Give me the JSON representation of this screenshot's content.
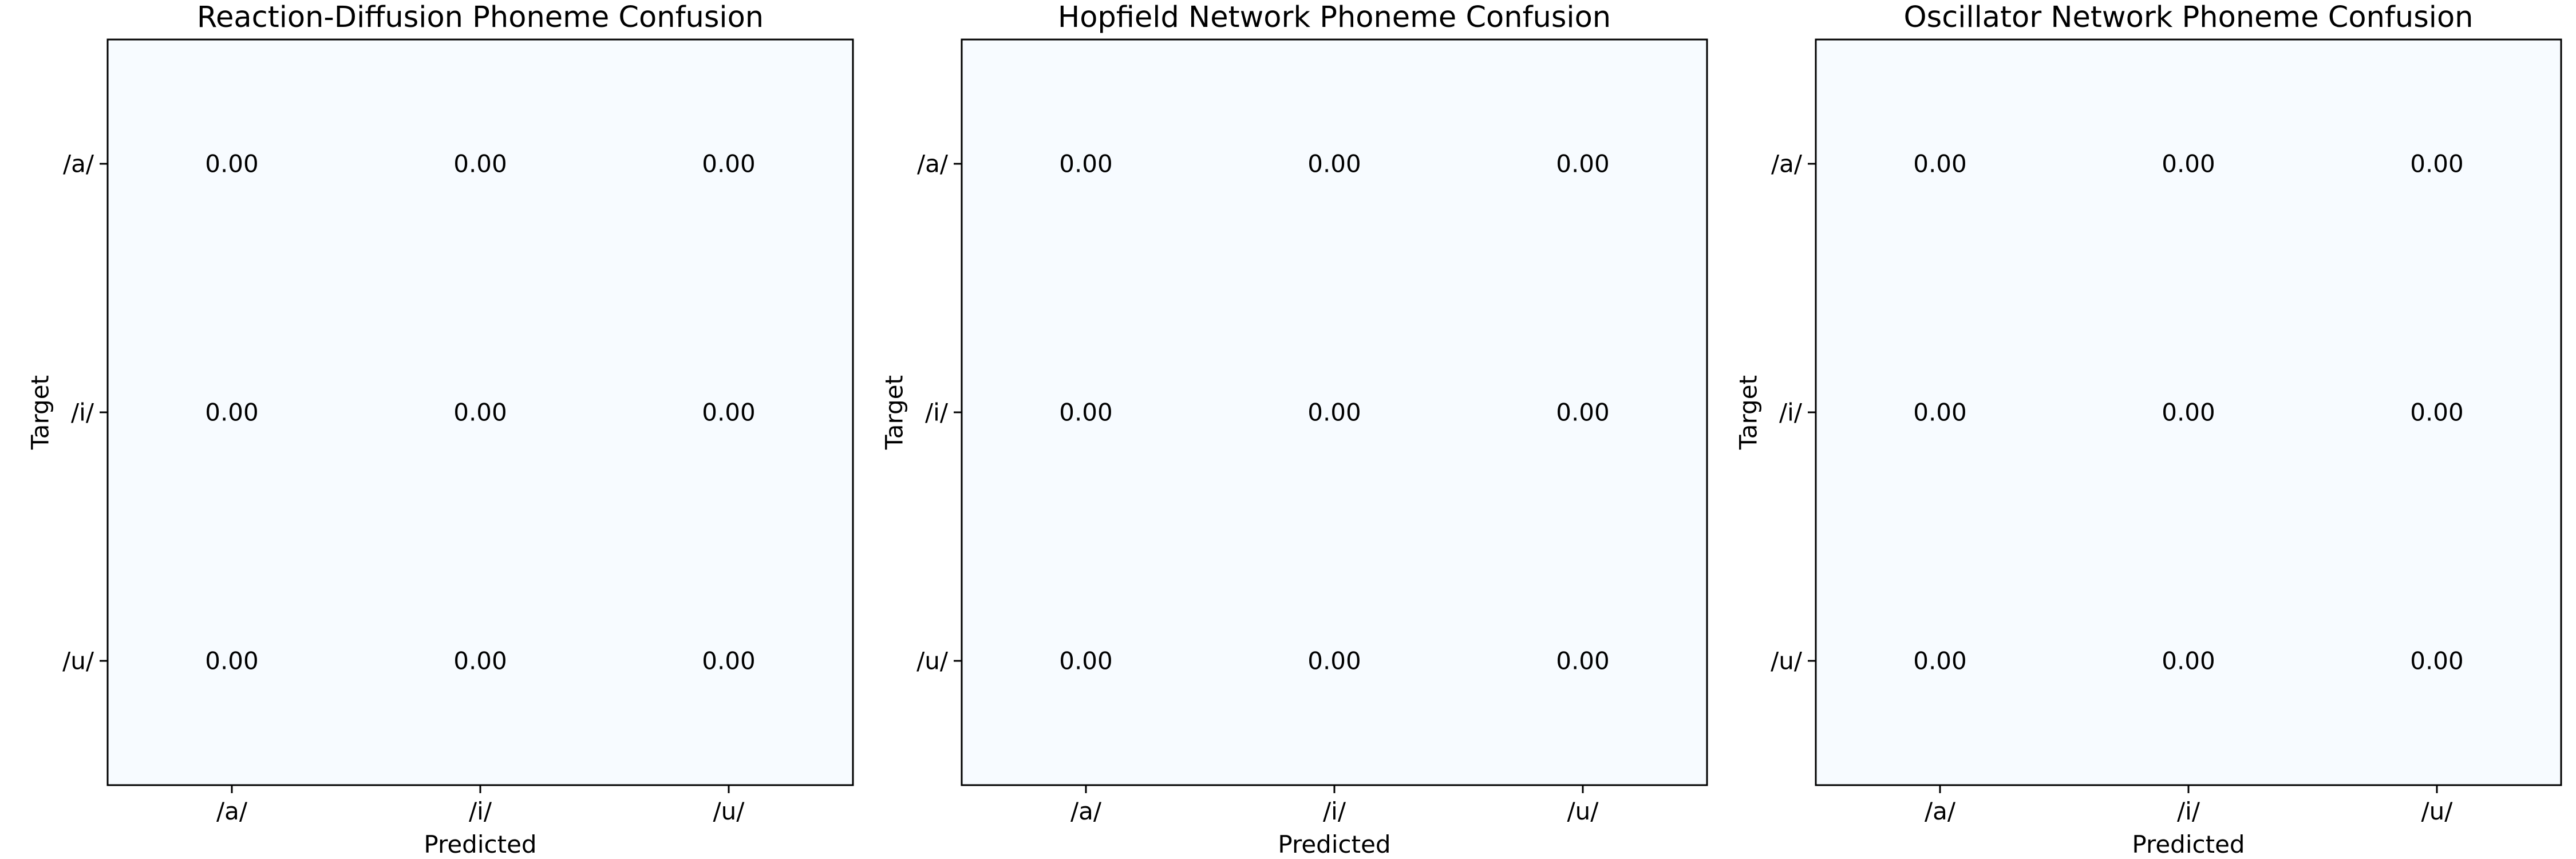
{
  "chart_data": [
    {
      "type": "heatmap",
      "title": "Reaction-Diffusion Phoneme Confusion",
      "xlabel": "Predicted",
      "ylabel": "Target",
      "x_categories": [
        "/a/",
        "/i/",
        "/u/"
      ],
      "y_categories": [
        "/a/",
        "/i/",
        "/u/"
      ],
      "values": [
        [
          0.0,
          0.0,
          0.0
        ],
        [
          0.0,
          0.0,
          0.0
        ],
        [
          0.0,
          0.0,
          0.0
        ]
      ],
      "value_labels": [
        [
          "0.00",
          "0.00",
          "0.00"
        ],
        [
          "0.00",
          "0.00",
          "0.00"
        ],
        [
          "0.00",
          "0.00",
          "0.00"
        ]
      ],
      "colormap": "Blues",
      "cell_color": "#f7fbff",
      "grid": false
    },
    {
      "type": "heatmap",
      "title": "Hopfield Network Phoneme Confusion",
      "xlabel": "Predicted",
      "ylabel": "Target",
      "x_categories": [
        "/a/",
        "/i/",
        "/u/"
      ],
      "y_categories": [
        "/a/",
        "/i/",
        "/u/"
      ],
      "values": [
        [
          0.0,
          0.0,
          0.0
        ],
        [
          0.0,
          0.0,
          0.0
        ],
        [
          0.0,
          0.0,
          0.0
        ]
      ],
      "value_labels": [
        [
          "0.00",
          "0.00",
          "0.00"
        ],
        [
          "0.00",
          "0.00",
          "0.00"
        ],
        [
          "0.00",
          "0.00",
          "0.00"
        ]
      ],
      "colormap": "Blues",
      "cell_color": "#f7fbff",
      "grid": false
    },
    {
      "type": "heatmap",
      "title": "Oscillator Network Phoneme Confusion",
      "xlabel": "Predicted",
      "ylabel": "Target",
      "x_categories": [
        "/a/",
        "/i/",
        "/u/"
      ],
      "y_categories": [
        "/a/",
        "/i/",
        "/u/"
      ],
      "values": [
        [
          0.0,
          0.0,
          0.0
        ],
        [
          0.0,
          0.0,
          0.0
        ],
        [
          0.0,
          0.0,
          0.0
        ]
      ],
      "value_labels": [
        [
          "0.00",
          "0.00",
          "0.00"
        ],
        [
          "0.00",
          "0.00",
          "0.00"
        ],
        [
          "0.00",
          "0.00",
          "0.00"
        ]
      ],
      "colormap": "Blues",
      "cell_color": "#f7fbff",
      "grid": false
    }
  ],
  "colors": {
    "text": "#000000",
    "frame": "#000000",
    "background": "#ffffff"
  }
}
